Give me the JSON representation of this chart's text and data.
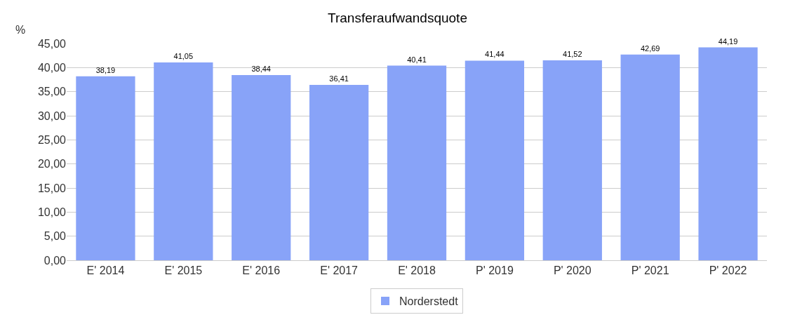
{
  "chart_data": {
    "type": "bar",
    "title": "Transferaufwandsquote",
    "ylabel": "%",
    "categories": [
      "E' 2014",
      "E' 2015",
      "E' 2016",
      "E' 2017",
      "E' 2018",
      "P' 2019",
      "P' 2020",
      "P' 2021",
      "P' 2022"
    ],
    "series": [
      {
        "name": "Norderstedt",
        "color": "#88a3f8",
        "values": [
          38.19,
          41.05,
          38.44,
          36.41,
          40.41,
          41.44,
          41.52,
          42.69,
          44.19
        ],
        "value_labels": [
          "38,19",
          "41,05",
          "38,44",
          "36,41",
          "40,41",
          "41,44",
          "41,52",
          "42,69",
          "44,19"
        ]
      }
    ],
    "ylim": [
      0,
      45
    ],
    "yticks": [
      {
        "value": 0,
        "label": "0,00"
      },
      {
        "value": 5,
        "label": "5,00"
      },
      {
        "value": 10,
        "label": "10,00"
      },
      {
        "value": 15,
        "label": "15,00"
      },
      {
        "value": 20,
        "label": "20,00"
      },
      {
        "value": 25,
        "label": "25,00"
      },
      {
        "value": 30,
        "label": "30,00"
      },
      {
        "value": 35,
        "label": "35,00"
      },
      {
        "value": 40,
        "label": "40,00"
      },
      {
        "value": 45,
        "label": "45,00"
      }
    ],
    "grid": "y",
    "legend": "bottom"
  }
}
